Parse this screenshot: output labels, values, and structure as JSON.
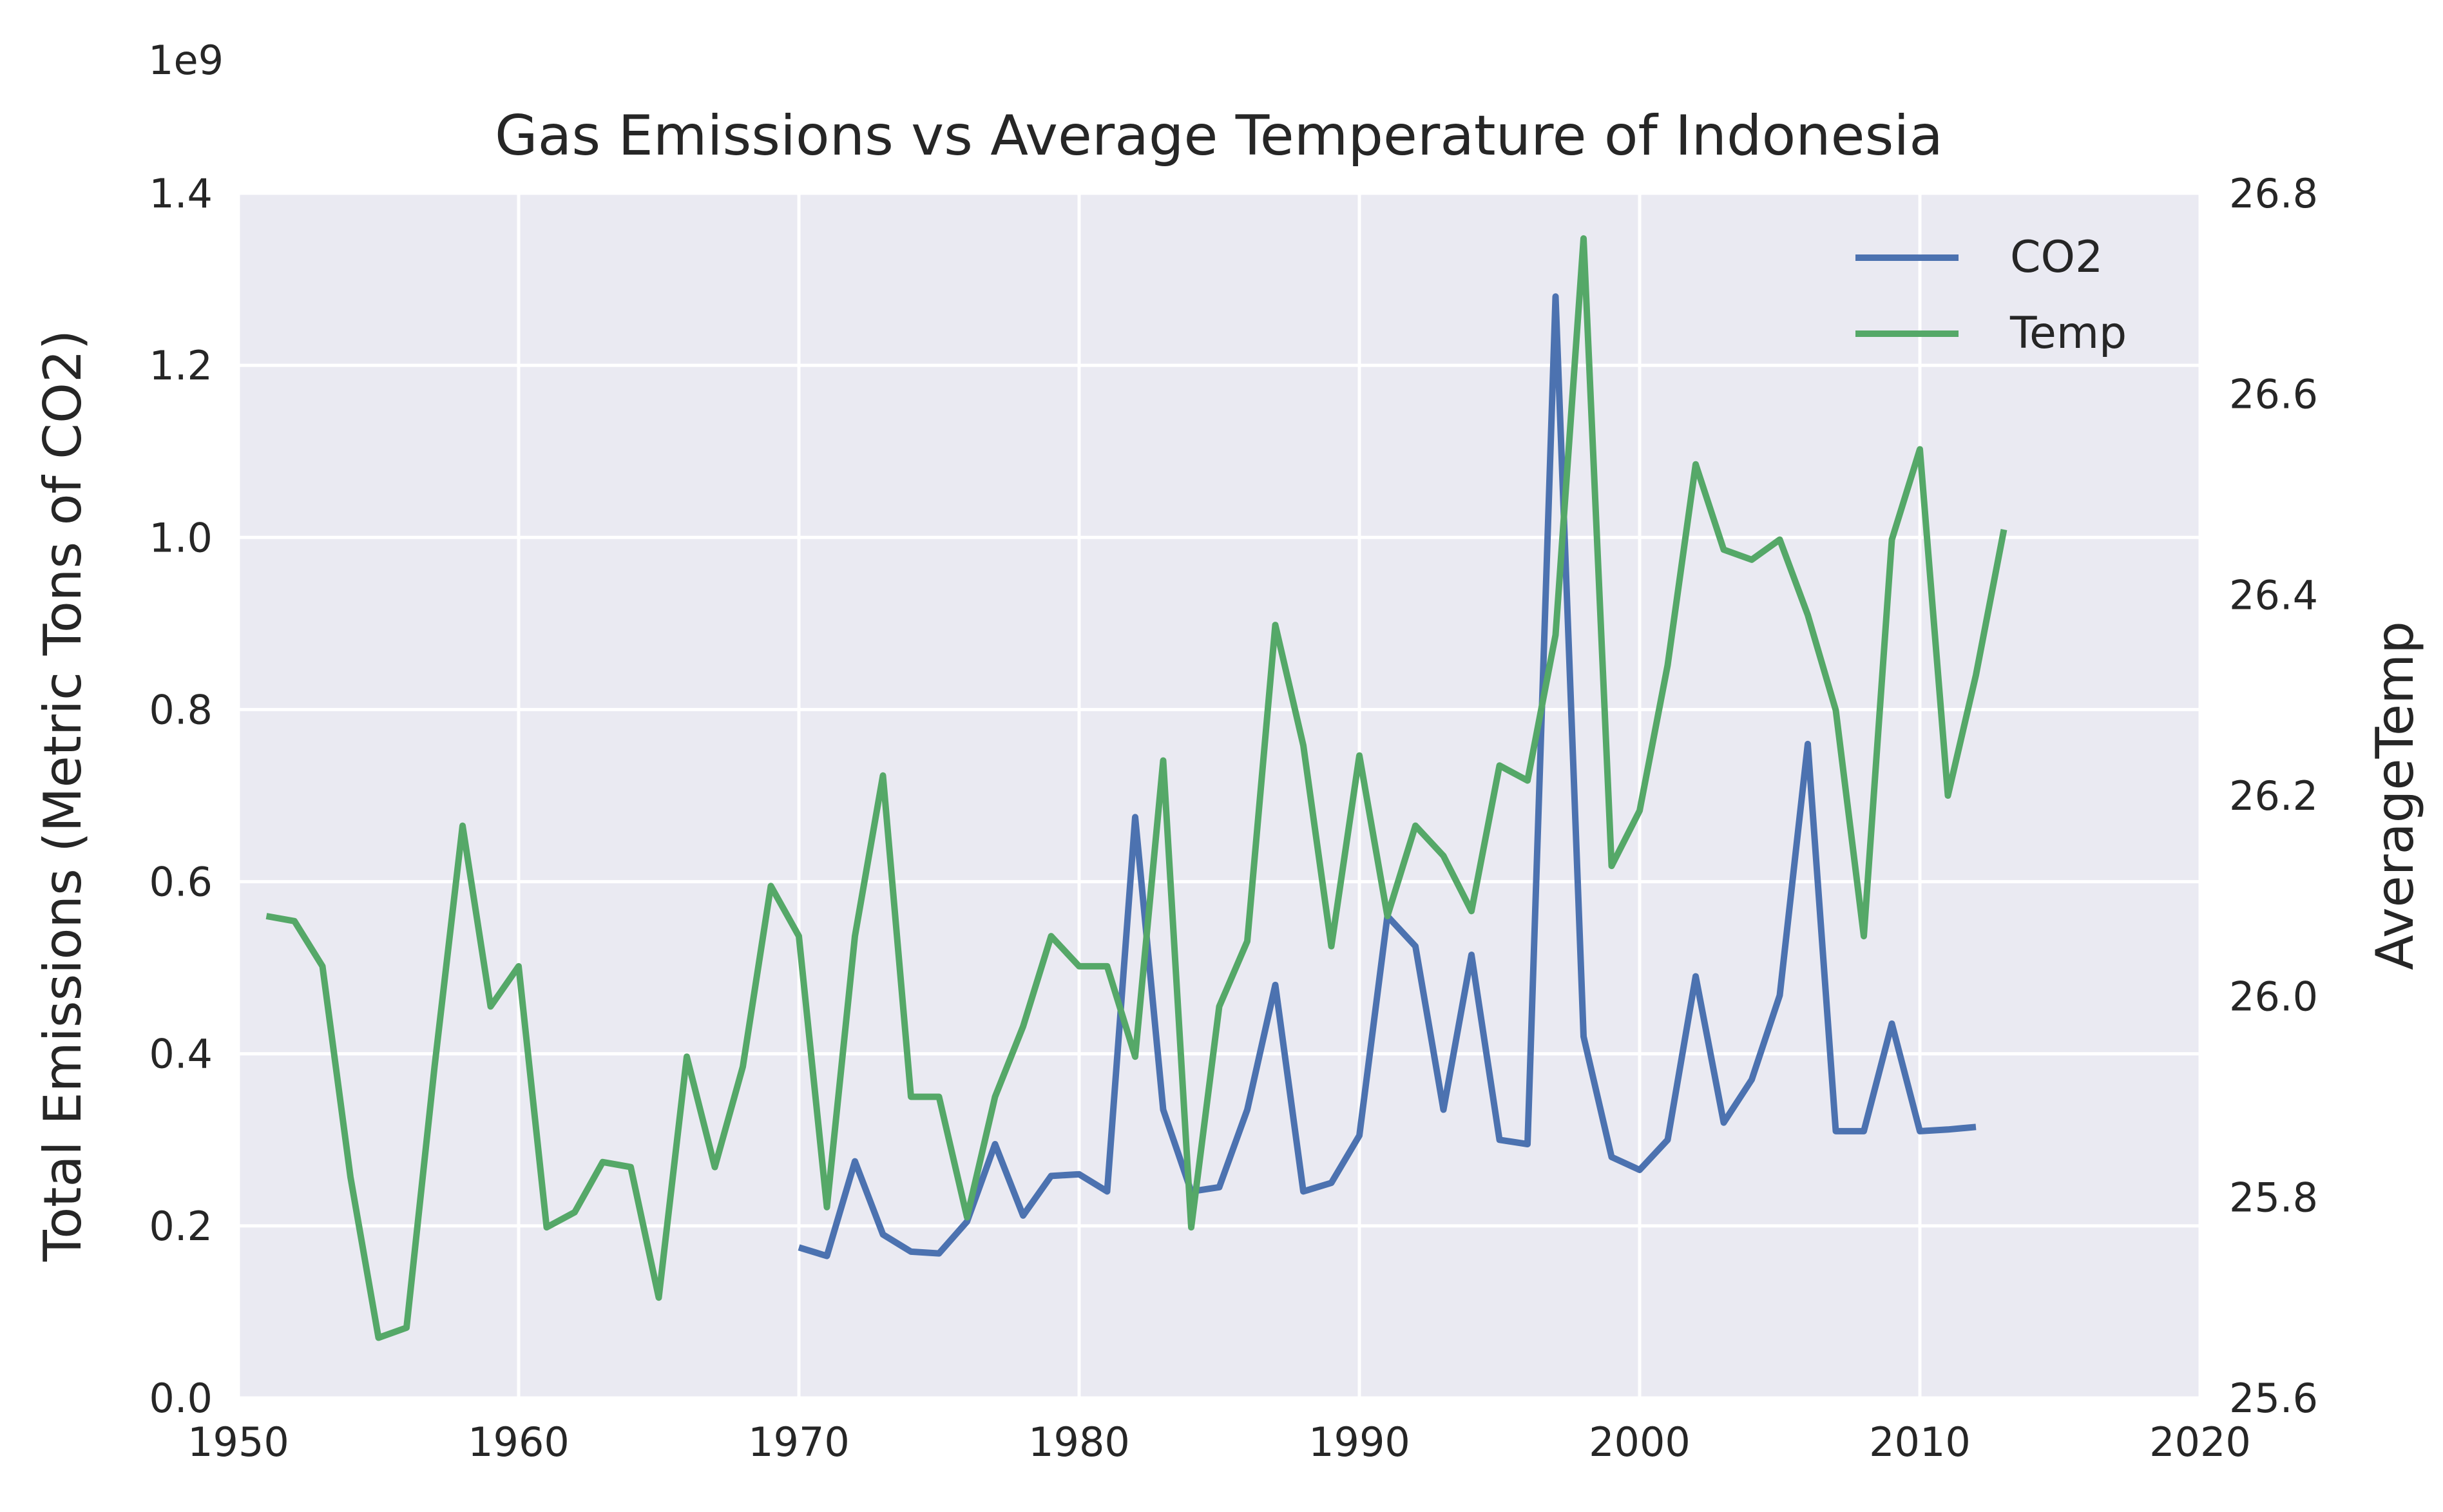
{
  "chart_data": {
    "type": "line",
    "title": "Gas Emissions vs Average Temperature of Indonesia",
    "xlabel": "",
    "ylabel": "Total Emissions (Metric Tons of CO2)",
    "ylabel_right": "AverageTemp",
    "offset_text": "1e9",
    "xlim": [
      1950,
      2020
    ],
    "ylim": [
      0.0,
      1.4
    ],
    "ylim_right": [
      25.6,
      26.8
    ],
    "xticks": [
      "1950",
      "1960",
      "1970",
      "1980",
      "1990",
      "2000",
      "2010",
      "2020"
    ],
    "yticks": [
      "0.0",
      "0.2",
      "0.4",
      "0.6",
      "0.8",
      "1.0",
      "1.2",
      "1.4"
    ],
    "yticks_right": [
      "25.6",
      "25.8",
      "26.0",
      "26.2",
      "26.4",
      "26.6",
      "26.8"
    ],
    "grid": true,
    "legend_position": "top-right",
    "colors": {
      "background": "#EAEAF2",
      "grid": "#FFFFFF",
      "co2": "#4C72B0",
      "temp": "#55A868"
    },
    "series": [
      {
        "name": "CO2",
        "axis": "left",
        "x": [
          1970,
          1971,
          1972,
          1973,
          1974,
          1975,
          1976,
          1977,
          1978,
          1979,
          1980,
          1981,
          1982,
          1983,
          1984,
          1985,
          1986,
          1987,
          1988,
          1989,
          1990,
          1991,
          1992,
          1993,
          1994,
          1995,
          1996,
          1997,
          1998,
          1999,
          2000,
          2001,
          2002,
          2003,
          2004,
          2005,
          2006,
          2007,
          2008,
          2009,
          2010,
          2011,
          2012
        ],
        "values": [
          0.175,
          0.165,
          0.275,
          0.19,
          0.17,
          0.168,
          0.205,
          0.295,
          0.212,
          0.258,
          0.26,
          0.24,
          0.675,
          0.335,
          0.24,
          0.245,
          0.335,
          0.48,
          0.24,
          0.25,
          0.305,
          0.56,
          0.525,
          0.335,
          0.515,
          0.3,
          0.295,
          1.28,
          0.42,
          0.28,
          0.265,
          0.3,
          0.49,
          0.32,
          0.37,
          0.468,
          0.76,
          0.31,
          0.31,
          0.435,
          0.31,
          0.312,
          0.315
        ]
      },
      {
        "name": "Temp",
        "axis": "right",
        "x": [
          1951,
          1952,
          1953,
          1954,
          1955,
          1956,
          1957,
          1958,
          1959,
          1960,
          1961,
          1962,
          1963,
          1964,
          1965,
          1966,
          1967,
          1968,
          1969,
          1970,
          1971,
          1972,
          1973,
          1974,
          1975,
          1976,
          1977,
          1978,
          1979,
          1980,
          1981,
          1982,
          1983,
          1984,
          1985,
          1986,
          1987,
          1988,
          1989,
          1990,
          1991,
          1992,
          1993,
          1994,
          1995,
          1996,
          1997,
          1998,
          1999,
          2000,
          2001,
          2002,
          2003,
          2004,
          2005,
          2006,
          2007,
          2008,
          2009,
          2010,
          2011,
          2012,
          2013
        ],
        "values": [
          26.08,
          26.075,
          26.03,
          25.82,
          25.66,
          25.67,
          25.93,
          26.17,
          25.99,
          26.03,
          25.77,
          25.785,
          25.835,
          25.83,
          25.7,
          25.94,
          25.83,
          25.93,
          26.11,
          26.06,
          25.79,
          26.06,
          26.22,
          25.9,
          25.9,
          25.78,
          25.9,
          25.97,
          26.06,
          26.03,
          26.03,
          25.94,
          26.235,
          25.77,
          25.99,
          26.055,
          26.37,
          26.25,
          26.05,
          26.24,
          26.08,
          26.17,
          26.14,
          26.085,
          26.23,
          26.215,
          26.36,
          26.755,
          26.13,
          26.185,
          26.33,
          26.53,
          26.445,
          26.435,
          26.455,
          26.38,
          26.285,
          26.06,
          26.455,
          26.545,
          26.2,
          26.32,
          26.465
        ]
      }
    ]
  }
}
